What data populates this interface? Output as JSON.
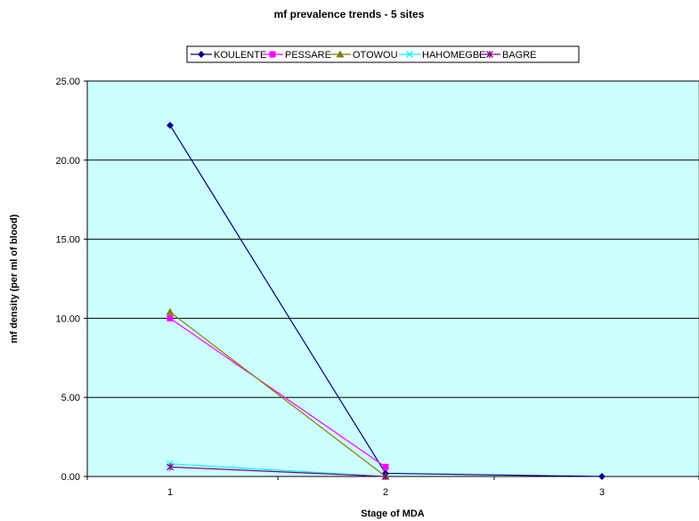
{
  "chart_data": {
    "type": "line",
    "title": "mf prevalence trends - 5 sites",
    "xlabel": "Stage of MDA",
    "ylabel": "mf density (per ml of blood)",
    "categories": [
      "1",
      "2",
      "3"
    ],
    "ylim": [
      0,
      25
    ],
    "yticks": [
      "0.00",
      "5.00",
      "10.00",
      "15.00",
      "20.00",
      "25.00"
    ],
    "grid": "horizontal",
    "plot_background": "#ccffff",
    "legend_position": "top",
    "series": [
      {
        "name": "KOULENTE",
        "color": "#000080",
        "marker": "diamond",
        "values": [
          22.2,
          0.2,
          0.0
        ]
      },
      {
        "name": "PESSARE",
        "color": "#ff00ff",
        "marker": "square",
        "values": [
          10.0,
          0.6,
          null
        ]
      },
      {
        "name": "OTOWOU",
        "color": "#808000",
        "marker": "triangle",
        "values": [
          10.4,
          0.0,
          null
        ]
      },
      {
        "name": "HAHOMEGBE",
        "color": "#00ffff",
        "marker": "x",
        "values": [
          0.8,
          0.0,
          null
        ]
      },
      {
        "name": "BAGRE",
        "color": "#800080",
        "marker": "star",
        "values": [
          0.6,
          0.0,
          null
        ]
      }
    ]
  }
}
